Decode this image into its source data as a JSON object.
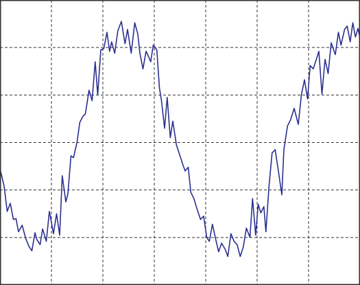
{
  "chart_data": {
    "type": "line",
    "title": "",
    "xlabel": "",
    "ylabel": "",
    "grid": true,
    "legend": "none",
    "xlim": [
      0,
      7
    ],
    "ylim": [
      0,
      6
    ],
    "colors": {
      "series": "#2b2f8f",
      "grid": "#333333",
      "frame": "#333333",
      "background": "#ffffff"
    },
    "series": [
      {
        "x": [
          0.0,
          0.08,
          0.14,
          0.2,
          0.26,
          0.31,
          0.36,
          0.43,
          0.5,
          0.56,
          0.62,
          0.68,
          0.72,
          0.78,
          0.83,
          0.9,
          0.96,
          1.04,
          1.1,
          1.16,
          1.21,
          1.28,
          1.32,
          1.38,
          1.43,
          1.5,
          1.55,
          1.61,
          1.66,
          1.73,
          1.79,
          1.85,
          1.9,
          1.96,
          2.02,
          2.08,
          2.13,
          2.17,
          2.23,
          2.29,
          2.36,
          2.43,
          2.48,
          2.55,
          2.62,
          2.68,
          2.72,
          2.78,
          2.84,
          2.87,
          2.93,
          2.98,
          3.05,
          3.1,
          3.14,
          3.2,
          3.25,
          3.31,
          3.36,
          3.43,
          3.49,
          3.55,
          3.6,
          3.66,
          3.71,
          3.77,
          3.83,
          3.9,
          3.96,
          4.02,
          4.07,
          4.13,
          4.19,
          4.25,
          4.31,
          4.38,
          4.43,
          4.49,
          4.55,
          4.61,
          4.67,
          4.73,
          4.79,
          4.86,
          4.91,
          4.97,
          5.02,
          5.07,
          5.13,
          5.17,
          5.23,
          5.29,
          5.35,
          5.42,
          5.48,
          5.52,
          5.59,
          5.65,
          5.72,
          5.8,
          5.86,
          5.92,
          5.98,
          6.03,
          6.09,
          6.15,
          6.2,
          6.26,
          6.32,
          6.38,
          6.44,
          6.52,
          6.58,
          6.63,
          6.7,
          6.75,
          6.81,
          6.86,
          6.91,
          6.96,
          7.0
        ],
        "y": [
          2.45,
          2.08,
          1.55,
          1.72,
          1.38,
          1.4,
          1.12,
          1.26,
          0.98,
          0.82,
          0.72,
          1.1,
          0.95,
          0.85,
          1.18,
          0.92,
          1.55,
          1.08,
          1.5,
          1.05,
          2.3,
          1.75,
          1.92,
          2.72,
          2.68,
          3.02,
          3.42,
          3.55,
          3.6,
          4.1,
          3.88,
          4.7,
          4.0,
          4.95,
          4.98,
          5.32,
          4.92,
          5.12,
          4.88,
          5.35,
          5.55,
          5.08,
          5.38,
          4.88,
          5.52,
          5.28,
          4.88,
          4.55,
          4.92,
          4.85,
          4.7,
          5.05,
          4.95,
          4.15,
          3.88,
          3.3,
          3.95,
          3.1,
          3.45,
          2.95,
          2.75,
          2.55,
          2.4,
          2.48,
          1.95,
          1.82,
          1.6,
          1.38,
          1.45,
          1.0,
          0.92,
          1.28,
          0.98,
          0.7,
          0.88,
          0.75,
          0.6,
          1.08,
          0.92,
          0.85,
          0.6,
          0.8,
          1.2,
          1.0,
          1.82,
          1.05,
          1.7,
          1.52,
          1.65,
          1.12,
          2.08,
          2.78,
          2.85,
          2.35,
          1.9,
          2.85,
          3.35,
          3.48,
          3.72,
          3.38,
          4.0,
          4.32,
          3.92,
          4.62,
          4.55,
          4.75,
          4.92,
          4.02,
          4.75,
          4.45,
          5.1,
          4.85,
          5.32,
          5.05,
          5.38,
          5.45,
          5.12,
          5.52,
          5.22,
          5.4,
          5.2
        ]
      }
    ]
  }
}
